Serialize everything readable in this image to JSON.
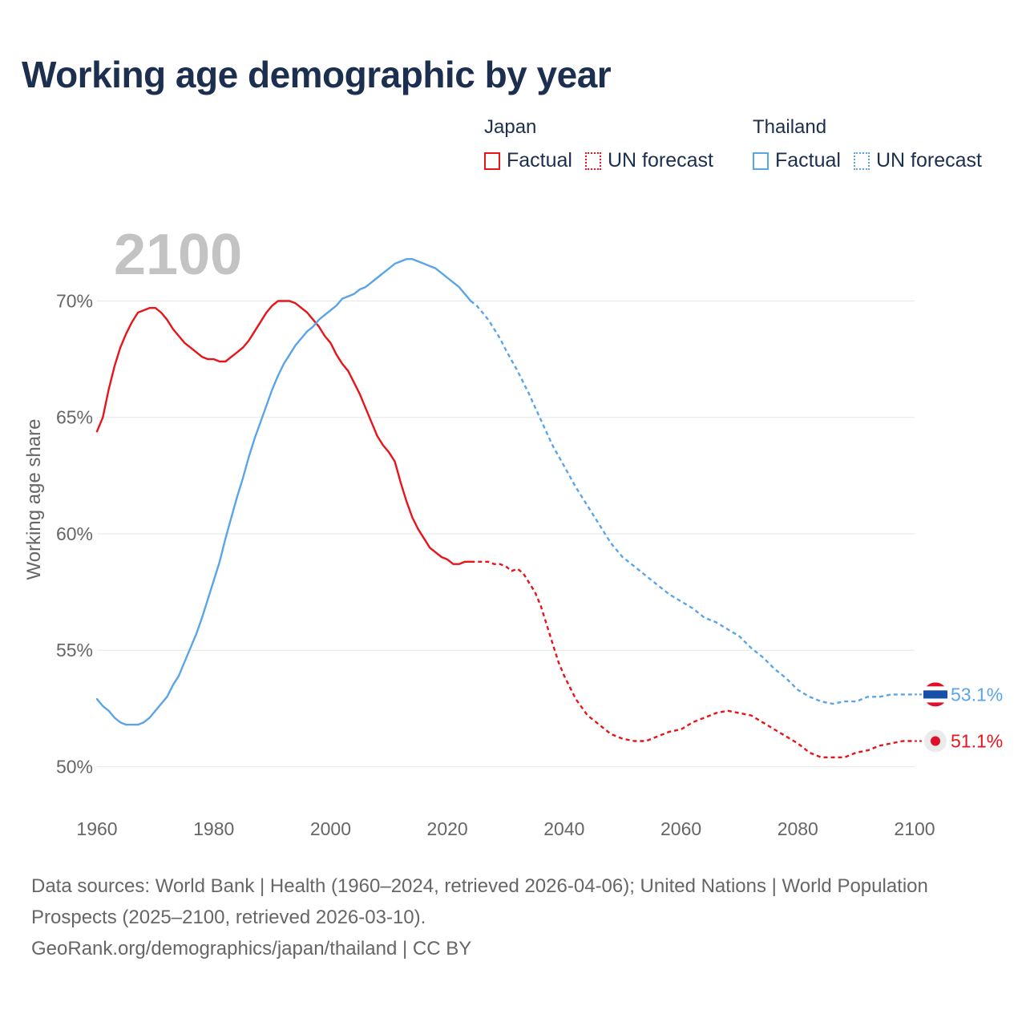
{
  "title": "Working age demographic by year",
  "legend": {
    "japan": {
      "title": "Japan",
      "factual": "Factual",
      "forecast": "UN forecast",
      "color": "#e8141a"
    },
    "thailand": {
      "title": "Thailand",
      "factual": "Factual",
      "forecast": "UN forecast",
      "color": "#5aa5e8"
    }
  },
  "footer": {
    "sources": "Data sources: World Bank | Health (1960–2024, retrieved 2026-04-06); United Nations | World Population Prospects (2025–2100, retrieved 2026-03-10).",
    "link": "GeoRank.org/demographics/japan/thailand | CC BY"
  },
  "chart_data": {
    "type": "line",
    "title": "Working age demographic by year",
    "year_label": "2100",
    "xlabel": "",
    "ylabel": "Working age share",
    "xlim": [
      1960,
      2100
    ],
    "ylim": [
      48.5,
      72.6
    ],
    "x_ticks": [
      "1960",
      "1980",
      "2000",
      "2020",
      "2040",
      "2060",
      "2080",
      "2100"
    ],
    "y_ticks": [
      {
        "value": 50,
        "label": "50%"
      },
      {
        "value": 55,
        "label": "55%"
      },
      {
        "value": 60,
        "label": "60%"
      },
      {
        "value": 65,
        "label": "65%"
      },
      {
        "value": 70,
        "label": "70%"
      }
    ],
    "grid": true,
    "series": [
      {
        "name": "Japan",
        "color": "#e8141a",
        "factual_end": 2024,
        "end_label": "51.1%",
        "points": [
          [
            1960,
            64.4
          ],
          [
            1961,
            65.0
          ],
          [
            1962,
            66.2
          ],
          [
            1963,
            67.2
          ],
          [
            1964,
            68.0
          ],
          [
            1965,
            68.6
          ],
          [
            1966,
            69.1
          ],
          [
            1967,
            69.5
          ],
          [
            1968,
            69.6
          ],
          [
            1969,
            69.7
          ],
          [
            1970,
            69.7
          ],
          [
            1971,
            69.5
          ],
          [
            1972,
            69.2
          ],
          [
            1973,
            68.8
          ],
          [
            1974,
            68.5
          ],
          [
            1975,
            68.2
          ],
          [
            1976,
            68.0
          ],
          [
            1977,
            67.8
          ],
          [
            1978,
            67.6
          ],
          [
            1979,
            67.5
          ],
          [
            1980,
            67.5
          ],
          [
            1981,
            67.4
          ],
          [
            1982,
            67.4
          ],
          [
            1983,
            67.6
          ],
          [
            1984,
            67.8
          ],
          [
            1985,
            68.0
          ],
          [
            1986,
            68.3
          ],
          [
            1987,
            68.7
          ],
          [
            1988,
            69.1
          ],
          [
            1989,
            69.5
          ],
          [
            1990,
            69.8
          ],
          [
            1991,
            70.0
          ],
          [
            1992,
            70.0
          ],
          [
            1993,
            70.0
          ],
          [
            1994,
            69.9
          ],
          [
            1995,
            69.7
          ],
          [
            1996,
            69.5
          ],
          [
            1997,
            69.2
          ],
          [
            1998,
            68.9
          ],
          [
            1999,
            68.5
          ],
          [
            2000,
            68.2
          ],
          [
            2001,
            67.7
          ],
          [
            2002,
            67.3
          ],
          [
            2003,
            67.0
          ],
          [
            2004,
            66.5
          ],
          [
            2005,
            66.0
          ],
          [
            2006,
            65.4
          ],
          [
            2007,
            64.8
          ],
          [
            2008,
            64.2
          ],
          [
            2009,
            63.8
          ],
          [
            2010,
            63.5
          ],
          [
            2011,
            63.1
          ],
          [
            2012,
            62.2
          ],
          [
            2013,
            61.4
          ],
          [
            2014,
            60.7
          ],
          [
            2015,
            60.2
          ],
          [
            2016,
            59.8
          ],
          [
            2017,
            59.4
          ],
          [
            2018,
            59.2
          ],
          [
            2019,
            59.0
          ],
          [
            2020,
            58.9
          ],
          [
            2021,
            58.7
          ],
          [
            2022,
            58.7
          ],
          [
            2023,
            58.8
          ],
          [
            2024,
            58.8
          ],
          [
            2025,
            58.8
          ],
          [
            2026,
            58.8
          ],
          [
            2027,
            58.8
          ],
          [
            2028,
            58.7
          ],
          [
            2029,
            58.7
          ],
          [
            2030,
            58.6
          ],
          [
            2031,
            58.4
          ],
          [
            2032,
            58.5
          ],
          [
            2033,
            58.3
          ],
          [
            2034,
            57.9
          ],
          [
            2035,
            57.5
          ],
          [
            2036,
            56.9
          ],
          [
            2037,
            56.1
          ],
          [
            2038,
            55.3
          ],
          [
            2039,
            54.5
          ],
          [
            2040,
            53.9
          ],
          [
            2042,
            52.9
          ],
          [
            2044,
            52.2
          ],
          [
            2046,
            51.8
          ],
          [
            2048,
            51.4
          ],
          [
            2050,
            51.2
          ],
          [
            2052,
            51.1
          ],
          [
            2054,
            51.1
          ],
          [
            2056,
            51.3
          ],
          [
            2058,
            51.5
          ],
          [
            2060,
            51.6
          ],
          [
            2062,
            51.9
          ],
          [
            2064,
            52.1
          ],
          [
            2066,
            52.3
          ],
          [
            2068,
            52.4
          ],
          [
            2070,
            52.3
          ],
          [
            2072,
            52.2
          ],
          [
            2074,
            51.9
          ],
          [
            2076,
            51.6
          ],
          [
            2078,
            51.3
          ],
          [
            2080,
            51.0
          ],
          [
            2082,
            50.6
          ],
          [
            2084,
            50.4
          ],
          [
            2086,
            50.4
          ],
          [
            2088,
            50.4
          ],
          [
            2090,
            50.6
          ],
          [
            2092,
            50.7
          ],
          [
            2094,
            50.9
          ],
          [
            2096,
            51.0
          ],
          [
            2098,
            51.1
          ],
          [
            2100,
            51.1
          ]
        ]
      },
      {
        "name": "Thailand",
        "color": "#5aa5e8",
        "factual_end": 2024,
        "end_label": "53.1%",
        "points": [
          [
            1960,
            52.9
          ],
          [
            1961,
            52.6
          ],
          [
            1962,
            52.4
          ],
          [
            1963,
            52.1
          ],
          [
            1964,
            51.9
          ],
          [
            1965,
            51.8
          ],
          [
            1966,
            51.8
          ],
          [
            1967,
            51.8
          ],
          [
            1968,
            51.9
          ],
          [
            1969,
            52.1
          ],
          [
            1970,
            52.4
          ],
          [
            1971,
            52.7
          ],
          [
            1972,
            53.0
          ],
          [
            1973,
            53.5
          ],
          [
            1974,
            53.9
          ],
          [
            1975,
            54.5
          ],
          [
            1976,
            55.1
          ],
          [
            1977,
            55.7
          ],
          [
            1978,
            56.4
          ],
          [
            1979,
            57.2
          ],
          [
            1980,
            58.0
          ],
          [
            1981,
            58.8
          ],
          [
            1982,
            59.8
          ],
          [
            1983,
            60.7
          ],
          [
            1984,
            61.6
          ],
          [
            1985,
            62.4
          ],
          [
            1986,
            63.3
          ],
          [
            1987,
            64.1
          ],
          [
            1988,
            64.8
          ],
          [
            1989,
            65.5
          ],
          [
            1990,
            66.2
          ],
          [
            1991,
            66.8
          ],
          [
            1992,
            67.3
          ],
          [
            1993,
            67.7
          ],
          [
            1994,
            68.1
          ],
          [
            1995,
            68.4
          ],
          [
            1996,
            68.7
          ],
          [
            1997,
            68.9
          ],
          [
            1998,
            69.2
          ],
          [
            1999,
            69.4
          ],
          [
            2000,
            69.6
          ],
          [
            2001,
            69.8
          ],
          [
            2002,
            70.1
          ],
          [
            2003,
            70.2
          ],
          [
            2004,
            70.3
          ],
          [
            2005,
            70.5
          ],
          [
            2006,
            70.6
          ],
          [
            2007,
            70.8
          ],
          [
            2008,
            71.0
          ],
          [
            2009,
            71.2
          ],
          [
            2010,
            71.4
          ],
          [
            2011,
            71.6
          ],
          [
            2012,
            71.7
          ],
          [
            2013,
            71.8
          ],
          [
            2014,
            71.8
          ],
          [
            2015,
            71.7
          ],
          [
            2016,
            71.6
          ],
          [
            2017,
            71.5
          ],
          [
            2018,
            71.4
          ],
          [
            2019,
            71.2
          ],
          [
            2020,
            71.0
          ],
          [
            2021,
            70.8
          ],
          [
            2022,
            70.6
          ],
          [
            2023,
            70.3
          ],
          [
            2024,
            70.0
          ],
          [
            2025,
            69.8
          ],
          [
            2026,
            69.5
          ],
          [
            2027,
            69.2
          ],
          [
            2028,
            68.8
          ],
          [
            2029,
            68.4
          ],
          [
            2030,
            67.9
          ],
          [
            2032,
            67.0
          ],
          [
            2034,
            66.0
          ],
          [
            2036,
            64.9
          ],
          [
            2038,
            63.8
          ],
          [
            2040,
            62.9
          ],
          [
            2042,
            62.0
          ],
          [
            2044,
            61.2
          ],
          [
            2046,
            60.4
          ],
          [
            2048,
            59.6
          ],
          [
            2050,
            59.0
          ],
          [
            2052,
            58.6
          ],
          [
            2054,
            58.2
          ],
          [
            2056,
            57.8
          ],
          [
            2058,
            57.4
          ],
          [
            2060,
            57.1
          ],
          [
            2062,
            56.8
          ],
          [
            2064,
            56.4
          ],
          [
            2066,
            56.2
          ],
          [
            2068,
            55.9
          ],
          [
            2070,
            55.6
          ],
          [
            2072,
            55.1
          ],
          [
            2074,
            54.7
          ],
          [
            2076,
            54.2
          ],
          [
            2078,
            53.8
          ],
          [
            2080,
            53.3
          ],
          [
            2082,
            53.0
          ],
          [
            2084,
            52.8
          ],
          [
            2086,
            52.7
          ],
          [
            2088,
            52.8
          ],
          [
            2090,
            52.8
          ],
          [
            2092,
            53.0
          ],
          [
            2094,
            53.0
          ],
          [
            2096,
            53.1
          ],
          [
            2098,
            53.1
          ],
          [
            2100,
            53.1
          ]
        ]
      }
    ]
  }
}
